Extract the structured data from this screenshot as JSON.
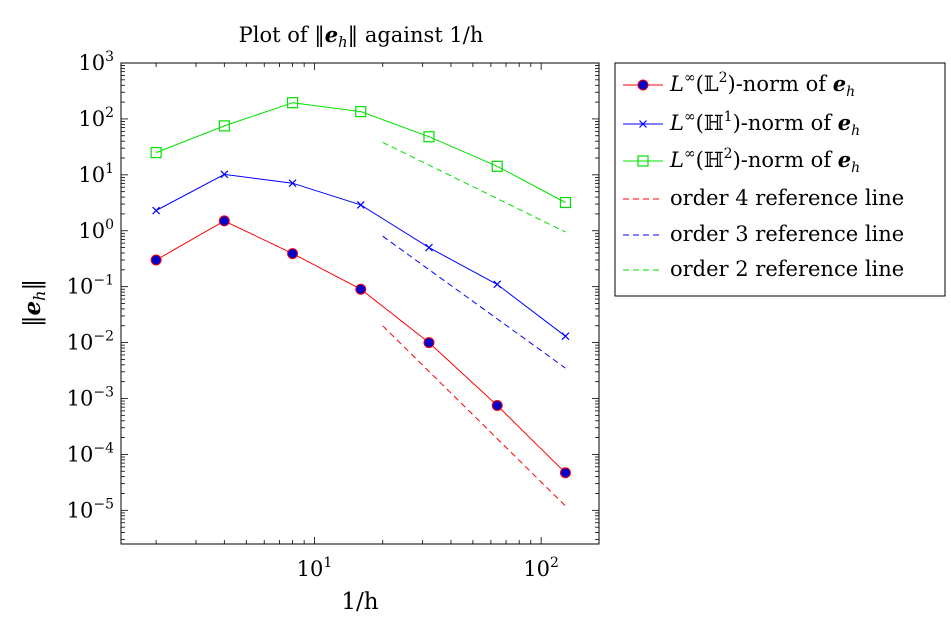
{
  "chart_data": {
    "type": "line",
    "title": "Plot of ‖eₕ‖ against 1/h",
    "title_parts": {
      "pre": "Plot of ‖",
      "bold_sym": "e",
      "sub": "h",
      "post": "‖ against 1/h"
    },
    "xlabel": "1/h",
    "ylabel": "‖eₕ‖",
    "ylabel_parts": {
      "pre": "‖",
      "bold_sym": "e",
      "sub": "h",
      "post": "‖"
    },
    "xscale": "log",
    "yscale": "log",
    "xlim": [
      1.4,
      180
    ],
    "ylim": [
      2.5e-06,
      1000
    ],
    "x_ticks": [
      {
        "value": 10,
        "base": "10",
        "exp": "1"
      },
      {
        "value": 100,
        "base": "10",
        "exp": "2"
      }
    ],
    "y_ticks": [
      {
        "value": 1000,
        "base": "10",
        "exp": "3"
      },
      {
        "value": 100,
        "base": "10",
        "exp": "2"
      },
      {
        "value": 10,
        "base": "10",
        "exp": "1"
      },
      {
        "value": 1,
        "base": "10",
        "exp": "0"
      },
      {
        "value": 0.1,
        "base": "10",
        "exp": "−1"
      },
      {
        "value": 0.01,
        "base": "10",
        "exp": "−2"
      },
      {
        "value": 0.001,
        "base": "10",
        "exp": "−3"
      },
      {
        "value": 0.0001,
        "base": "10",
        "exp": "−4"
      },
      {
        "value": 1e-05,
        "base": "10",
        "exp": "−5"
      }
    ],
    "grid": false,
    "legend_position": "outside-right-top",
    "series": [
      {
        "name": "L∞(𝕃²)-norm of eₕ",
        "legend": {
          "pre": "L",
          "sup": "∞",
          "mid": "(𝕃",
          "sup2": "2",
          "post": ")-norm of "
        },
        "color": "#ff0000",
        "marker": "filled-circle",
        "marker_fill": "#0000cc",
        "dash": false,
        "x": [
          2,
          4,
          8,
          16,
          32,
          64,
          128
        ],
        "y": [
          0.3,
          1.5,
          0.39,
          0.09,
          0.01,
          0.00075,
          4.7e-05
        ]
      },
      {
        "name": "L∞(ℍ¹)-norm of eₕ",
        "legend": {
          "pre": "L",
          "sup": "∞",
          "mid": "(ℍ",
          "sup2": "1",
          "post": ")-norm of "
        },
        "color": "#0000ff",
        "marker": "x",
        "dash": false,
        "x": [
          2,
          4,
          8,
          16,
          32,
          64,
          128
        ],
        "y": [
          2.3,
          10.2,
          7.1,
          2.9,
          0.5,
          0.11,
          0.013
        ]
      },
      {
        "name": "L∞(ℍ²)-norm of eₕ",
        "legend": {
          "pre": "L",
          "sup": "∞",
          "mid": "(ℍ",
          "sup2": "2",
          "post": ")-norm of "
        },
        "color": "#00e000",
        "marker": "open-square",
        "dash": false,
        "x": [
          2,
          4,
          8,
          16,
          32,
          64,
          128
        ],
        "y": [
          25,
          75,
          195,
          135,
          48,
          14.2,
          3.2
        ]
      },
      {
        "name": "order 4 reference line",
        "color": "#ff0000",
        "marker": "none",
        "dash": true,
        "x": [
          20,
          128
        ],
        "y": [
          0.02,
          1.2e-05
        ]
      },
      {
        "name": "order 3 reference line",
        "color": "#0000ff",
        "marker": "none",
        "dash": true,
        "x": [
          20,
          128
        ],
        "y": [
          0.8,
          0.0035
        ]
      },
      {
        "name": "order 2 reference line",
        "color": "#00e000",
        "marker": "none",
        "dash": true,
        "x": [
          20,
          128
        ],
        "y": [
          38,
          0.95
        ]
      }
    ]
  }
}
